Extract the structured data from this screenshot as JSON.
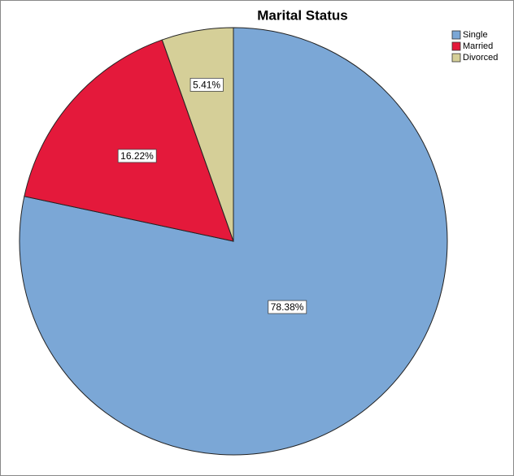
{
  "chart_data": {
    "type": "pie",
    "title": "Marital Status",
    "categories": [
      "Single",
      "Married",
      "Divorced"
    ],
    "values": [
      78.38,
      16.22,
      5.41
    ],
    "value_labels": [
      "78.38%",
      "16.22%",
      "5.41%"
    ],
    "colors": [
      "#7ba7d6",
      "#e4193b",
      "#d5cf98"
    ],
    "legend": "top-right"
  }
}
